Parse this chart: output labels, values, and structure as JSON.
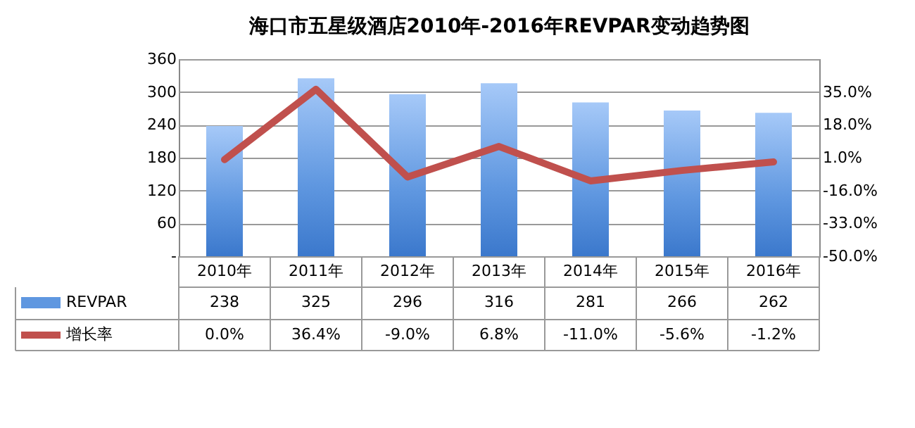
{
  "chart_data": {
    "type": "bar",
    "title": "海口市五星级酒店2010年-2016年REVPAR变动趋势图",
    "categories": [
      "2010年",
      "2011年",
      "2012年",
      "2013年",
      "2014年",
      "2015年",
      "2016年"
    ],
    "series": [
      {
        "name": "REVPAR",
        "color": "#5f97e0",
        "values": [
          238,
          325,
          296,
          316,
          281,
          266,
          262
        ],
        "value_labels": [
          "238",
          "325",
          "296",
          "316",
          "281",
          "266",
          "262"
        ]
      },
      {
        "name": "增长率",
        "type": "line",
        "axis": "y2",
        "color": "#c0504d",
        "values": [
          0.0,
          36.4,
          -9.0,
          6.8,
          -11.0,
          -5.6,
          -1.2
        ],
        "value_labels": [
          "0.0%",
          "36.4%",
          "-9.0%",
          "6.8%",
          "-11.0%",
          "-5.6%",
          "-1.2%"
        ]
      }
    ],
    "ylim": [
      0,
      360
    ],
    "yticks": [
      {
        "value": 0,
        "label": "-"
      },
      60,
      120,
      180,
      240,
      300,
      360
    ],
    "y2lim": [
      -50,
      52
    ],
    "y2ticks": [
      {
        "value": -50,
        "label": "-50.0%"
      },
      {
        "value": -33,
        "label": "-33.0%"
      },
      {
        "value": -16,
        "label": "-16.0%"
      },
      {
        "value": 1,
        "label": "1.0%"
      },
      {
        "value": 18,
        "label": "18.0%"
      },
      {
        "value": 35,
        "label": "35.0%"
      },
      {
        "value": 52,
        "label": null
      }
    ],
    "grid": "y",
    "legend": "bottom",
    "marker": "none",
    "line_style": "solid"
  }
}
